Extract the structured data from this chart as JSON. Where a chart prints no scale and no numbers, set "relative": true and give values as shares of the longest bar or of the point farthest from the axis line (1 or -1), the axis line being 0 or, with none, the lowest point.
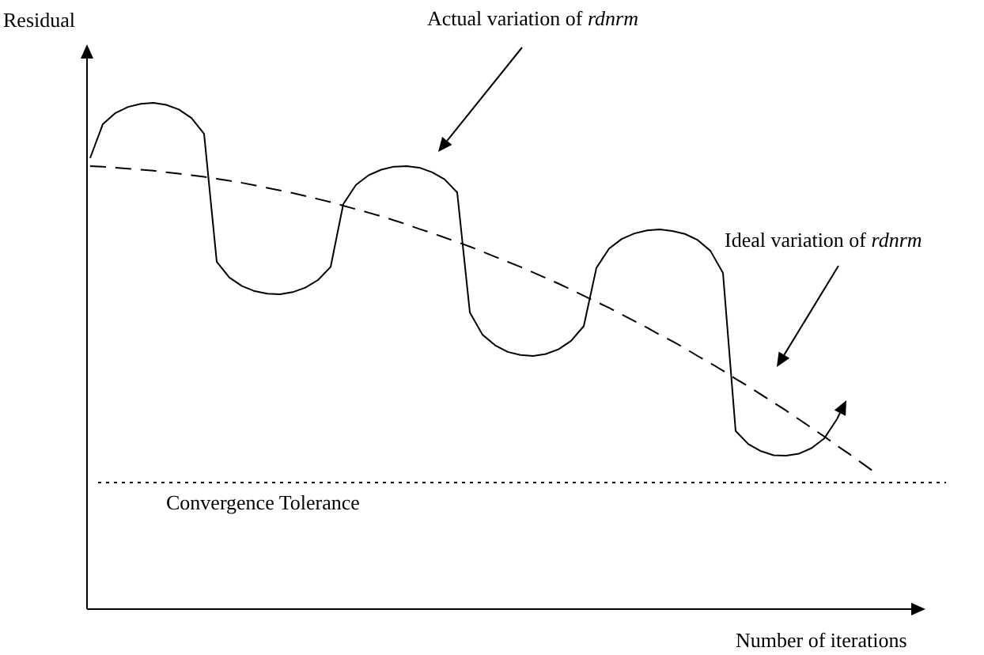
{
  "chart_data": {
    "type": "line",
    "relative": true,
    "xlabel": "Number of iterations",
    "ylabel": "Residual",
    "categories": [
      null,
      null,
      null,
      null,
      null,
      null,
      null,
      null,
      null,
      null,
      null,
      null,
      null,
      null,
      null,
      null,
      null,
      null,
      null,
      null,
      null,
      null,
      null,
      null,
      null,
      null,
      null,
      null,
      null,
      null,
      null,
      null,
      null,
      null,
      null,
      null,
      null,
      null,
      null,
      null,
      null,
      null,
      null,
      null,
      null,
      null,
      null,
      null,
      null,
      null,
      null,
      null,
      null,
      null,
      null,
      null,
      null,
      null,
      null,
      null,
      null,
      null,
      null
    ],
    "series": [
      {
        "color": "#000000",
        "line_style": "solid",
        "values": [
          0.891,
          0.958,
          0.98,
          0.992,
          0.998,
          1,
          0.996,
          0.987,
          0.97,
          0.939,
          0.686,
          0.655,
          0.638,
          0.628,
          0.623,
          0.622,
          0.626,
          0.635,
          0.65,
          0.676,
          0.8,
          0.838,
          0.857,
          0.868,
          0.874,
          0.875,
          0.872,
          0.863,
          0.849,
          0.823,
          0.586,
          0.542,
          0.521,
          0.508,
          0.502,
          0.5,
          0.504,
          0.513,
          0.53,
          0.559,
          0.674,
          0.712,
          0.731,
          0.742,
          0.748,
          0.75,
          0.747,
          0.741,
          0.729,
          0.708,
          0.664,
          0.352,
          0.326,
          0.312,
          0.304,
          0.303,
          0.307,
          0.318,
          0.337,
          0.375,
          null,
          null,
          null
        ]
      },
      {
        "color": "#000000",
        "line_style": "dashed",
        "values": [
          0.875,
          0.874,
          0.872,
          0.87,
          0.868,
          0.866,
          0.863,
          0.86,
          0.857,
          0.854,
          0.85,
          0.846,
          0.842,
          0.837,
          0.832,
          0.827,
          0.822,
          0.816,
          0.81,
          0.804,
          0.797,
          0.79,
          0.783,
          0.776,
          0.768,
          0.76,
          0.751,
          0.743,
          0.734,
          0.725,
          0.716,
          0.706,
          0.696,
          0.686,
          0.676,
          0.665,
          0.654,
          0.643,
          0.631,
          0.619,
          0.607,
          0.595,
          0.582,
          0.569,
          0.556,
          0.542,
          0.529,
          0.515,
          0.5,
          0.486,
          0.471,
          0.455,
          0.44,
          0.424,
          0.408,
          0.392,
          0.375,
          0.358,
          0.341,
          0.323,
          0.306,
          0.288,
          0.27
        ]
      }
    ],
    "ref_lines": [
      {
        "axis": "y",
        "value": 0.25,
        "label": "Convergence Tolerance",
        "line_style": "dotted",
        "color": "#000000"
      }
    ],
    "annotations": [
      "Actual variation of rdnrm",
      "Ideal variation of rdnrm"
    ]
  }
}
